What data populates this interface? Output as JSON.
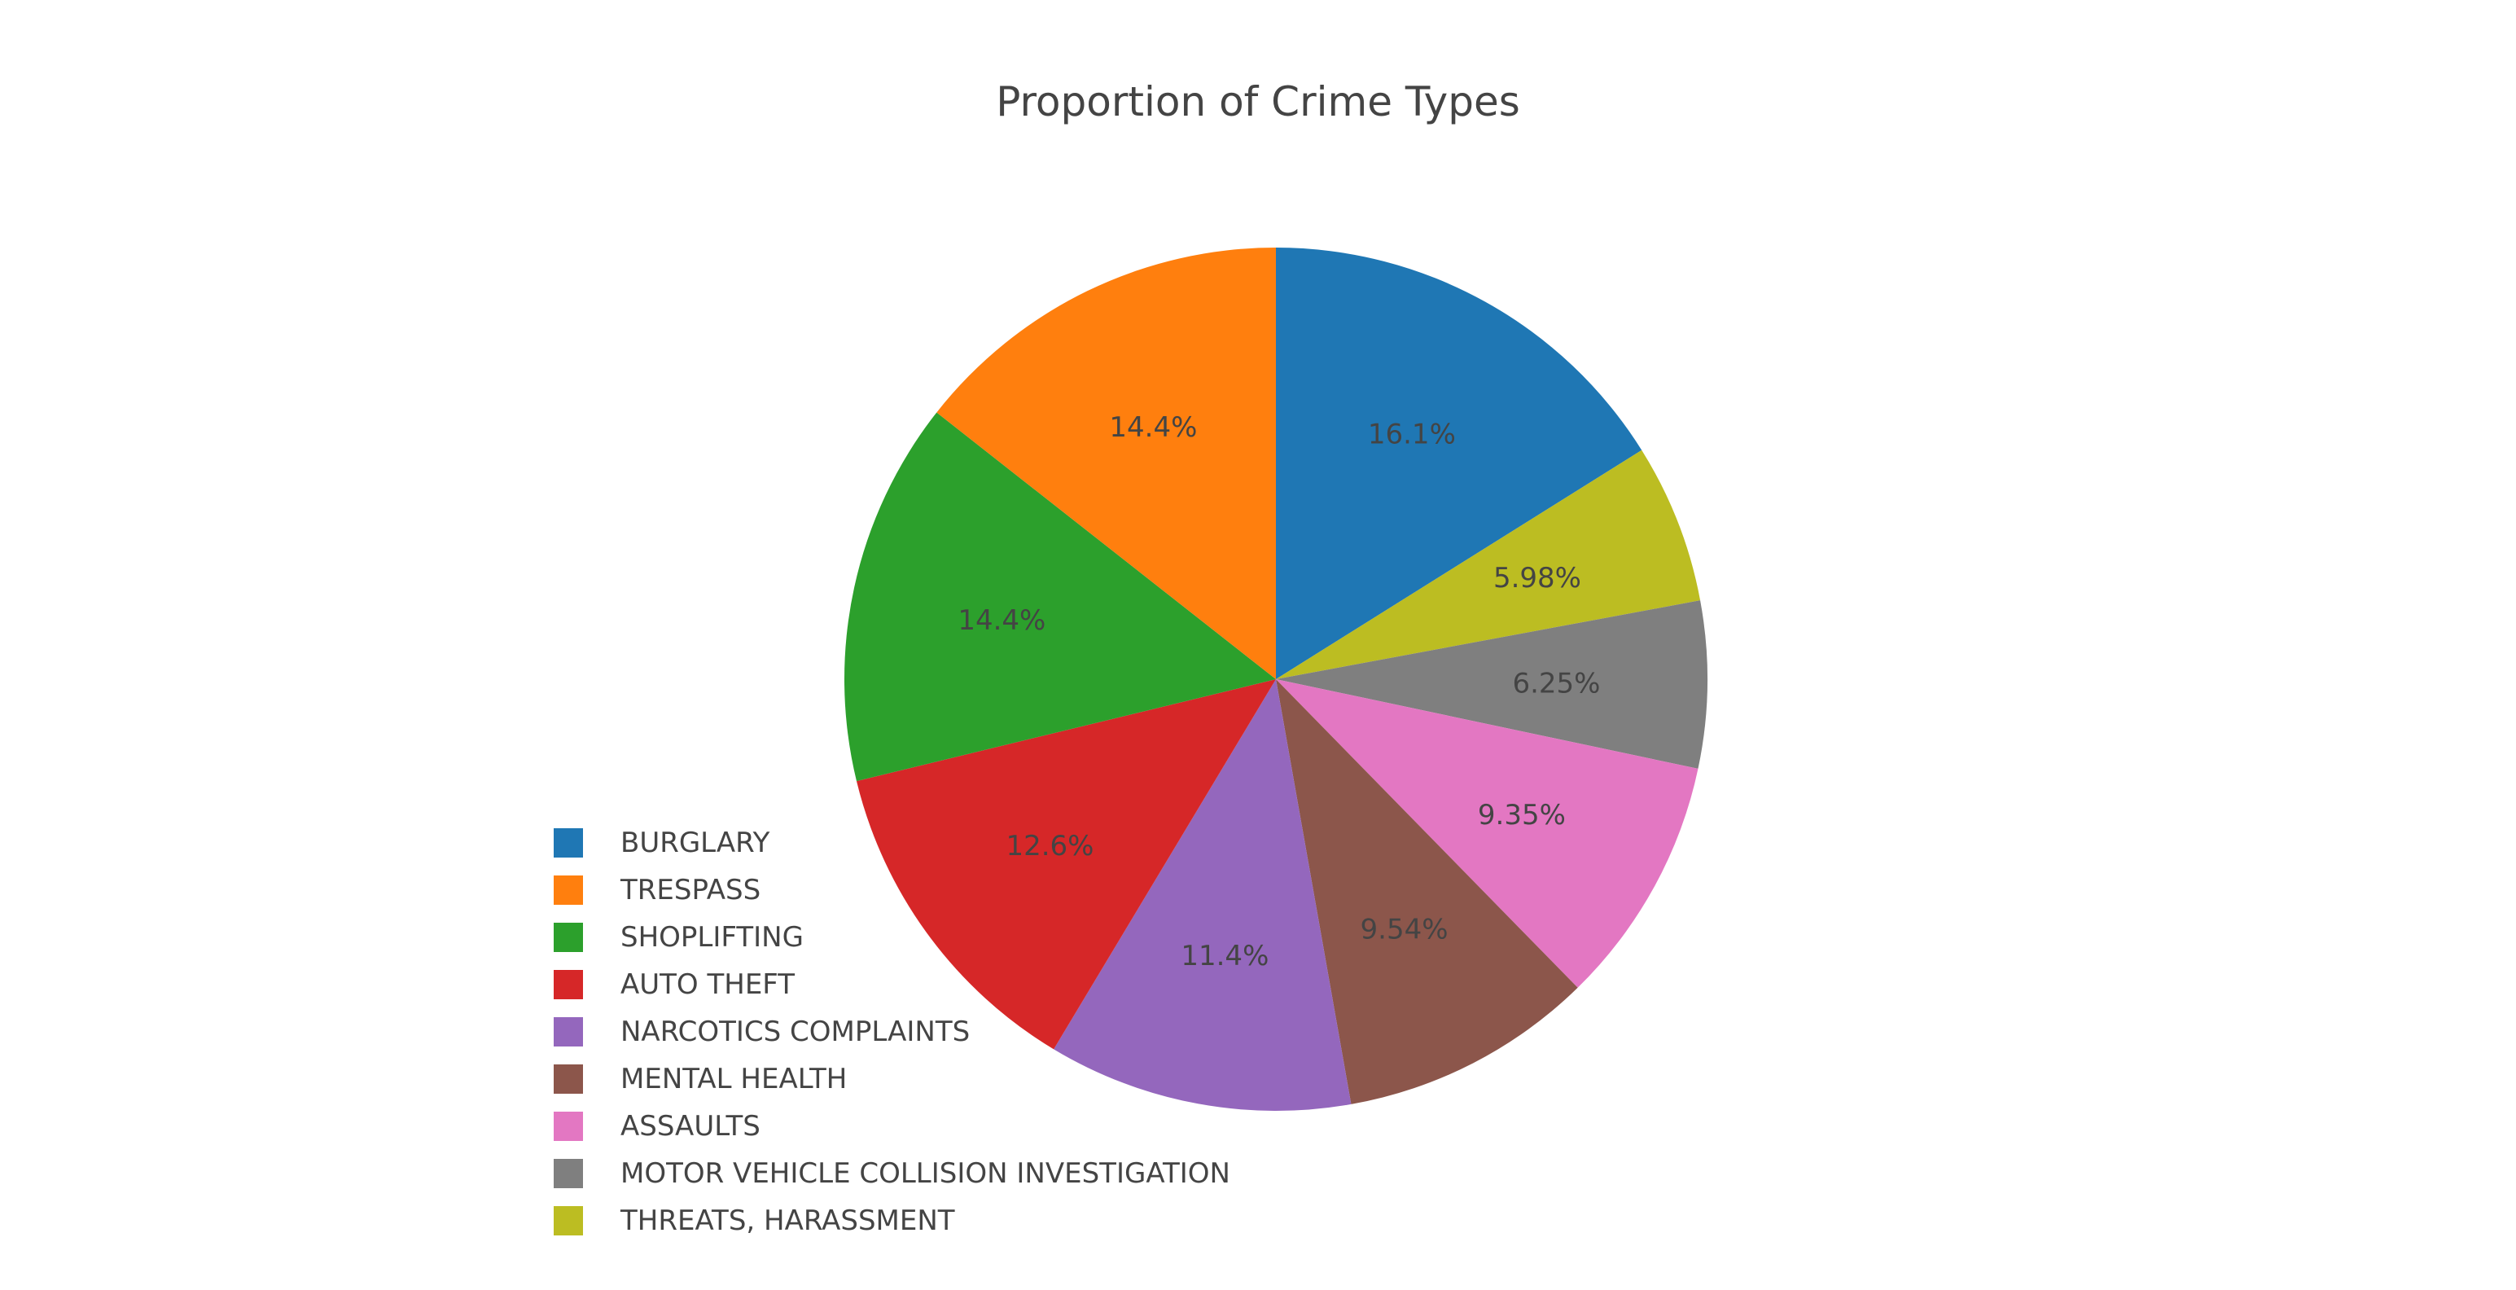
{
  "chart_data": {
    "type": "pie",
    "title": "Proportion of Crime Types",
    "direction": "clockwise",
    "start": "top (12 o'clock)",
    "legend_position": "bottom-left",
    "slices": [
      {
        "label": "BURGLARY",
        "percent": 16.1,
        "text": "16.1%",
        "color": "#1f77b4"
      },
      {
        "label": "THREATS, HARASSMENT",
        "percent": 5.98,
        "text": "5.98%",
        "color": "#bcbd22"
      },
      {
        "label": "MOTOR VEHICLE COLLISION INVESTIGATION",
        "percent": 6.25,
        "text": "6.25%",
        "color": "#7f7f7f"
      },
      {
        "label": "ASSAULTS",
        "percent": 9.35,
        "text": "9.35%",
        "color": "#e377c2"
      },
      {
        "label": "MENTAL HEALTH",
        "percent": 9.54,
        "text": "9.54%",
        "color": "#8c564b"
      },
      {
        "label": "NARCOTICS COMPLAINTS",
        "percent": 11.4,
        "text": "11.4%",
        "color": "#9467bd"
      },
      {
        "label": "AUTO THEFT",
        "percent": 12.6,
        "text": "12.6%",
        "color": "#d62728"
      },
      {
        "label": "SHOPLIFTING",
        "percent": 14.4,
        "text": "14.4%",
        "color": "#2ca02c"
      },
      {
        "label": "TRESPASS",
        "percent": 14.4,
        "text": "14.4%",
        "color": "#ff7f0e"
      }
    ],
    "legend": [
      {
        "label": "BURGLARY",
        "color": "#1f77b4"
      },
      {
        "label": "TRESPASS",
        "color": "#ff7f0e"
      },
      {
        "label": "SHOPLIFTING",
        "color": "#2ca02c"
      },
      {
        "label": "AUTO THEFT",
        "color": "#d62728"
      },
      {
        "label": "NARCOTICS COMPLAINTS",
        "color": "#9467bd"
      },
      {
        "label": "MENTAL HEALTH",
        "color": "#8c564b"
      },
      {
        "label": "ASSAULTS",
        "color": "#e377c2"
      },
      {
        "label": "MOTOR VEHICLE COLLISION INVESTIGATION",
        "color": "#7f7f7f"
      },
      {
        "label": "THREATS, HARASSMENT",
        "color": "#bcbd22"
      }
    ]
  }
}
